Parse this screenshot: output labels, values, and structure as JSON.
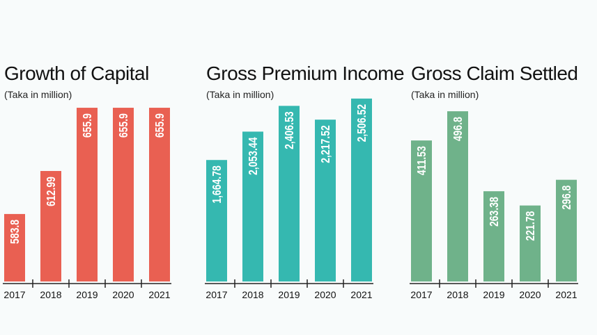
{
  "chart_data": [
    {
      "type": "bar",
      "title": "Growth of Capital",
      "subtitle": "(Taka in million)",
      "categories": [
        "2017",
        "2018",
        "2019",
        "2020",
        "2021"
      ],
      "values": [
        583.8,
        612.99,
        655.9,
        655.9,
        655.9
      ],
      "labels": [
        "583.8",
        "612.99",
        "655.9",
        "655.9",
        "655.9"
      ],
      "color": "#e96052",
      "grid": false
    },
    {
      "type": "bar",
      "title": "Gross Premium Income",
      "subtitle": "(Taka in million)",
      "categories": [
        "2017",
        "2018",
        "2019",
        "2020",
        "2021"
      ],
      "values": [
        1664.78,
        2053.44,
        2406.53,
        2217.52,
        2506.52
      ],
      "labels": [
        "1,664.78",
        "2,053.44",
        "2,406.53",
        "2,217.52",
        "2,506.52"
      ],
      "color": "#35b8b0",
      "grid": false
    },
    {
      "type": "bar",
      "title": "Gross Claim Settled",
      "subtitle": "(Taka in million)",
      "categories": [
        "2017",
        "2018",
        "2019",
        "2020",
        "2021"
      ],
      "values": [
        411.53,
        496.8,
        263.38,
        221.78,
        296.8
      ],
      "labels": [
        "411.53",
        "496.8",
        "263.38",
        "221.78",
        "296.8"
      ],
      "color": "#6fb28a",
      "grid": false
    }
  ]
}
